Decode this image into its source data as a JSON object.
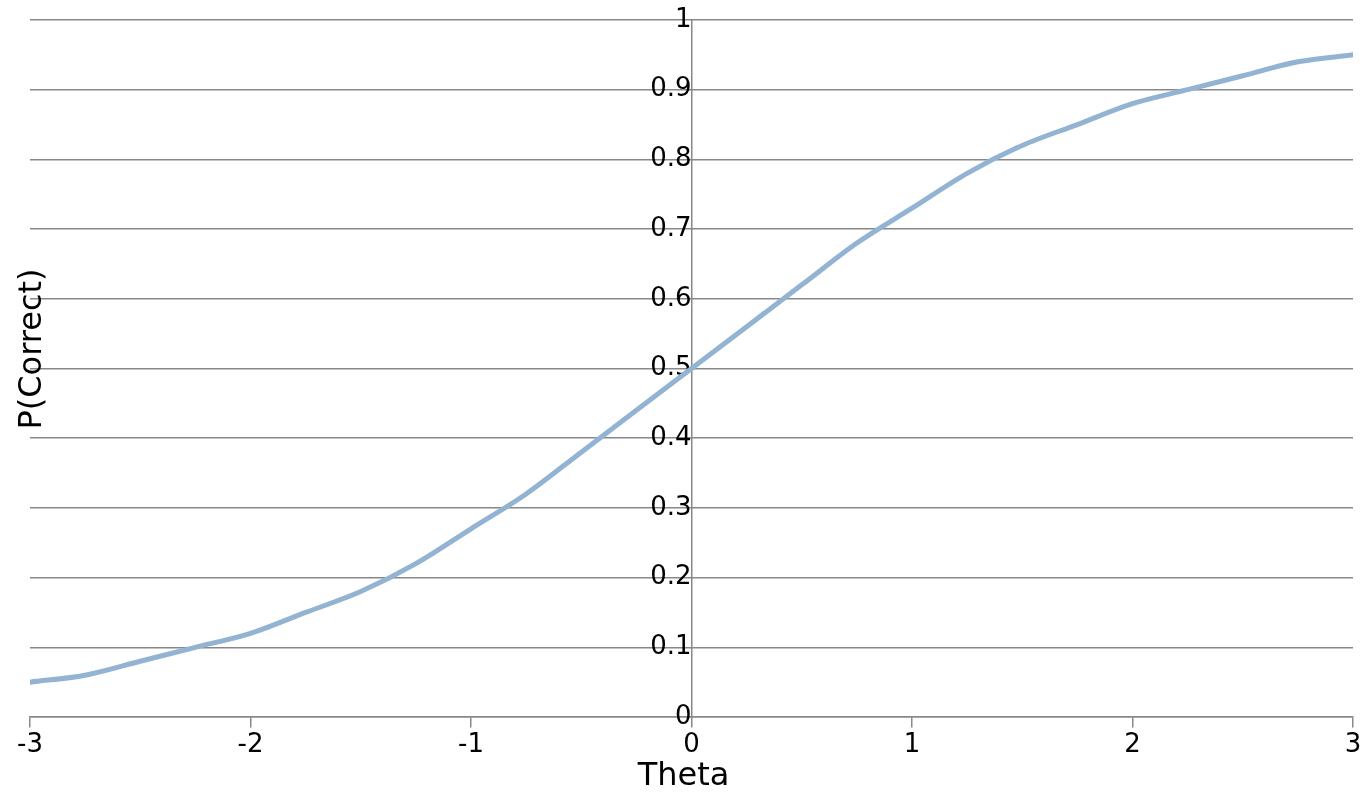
{
  "chart_data": {
    "type": "line",
    "xlabel": "Theta",
    "ylabel": "P(Correct)",
    "series": [
      {
        "color": "#93b3d3",
        "x": [
          -3,
          -2.75,
          -2.5,
          -2.25,
          -2,
          -1.75,
          -1.5,
          -1.25,
          -1,
          -0.75,
          -0.5,
          -0.25,
          0,
          0.25,
          0.5,
          0.75,
          1,
          1.25,
          1.5,
          1.75,
          2,
          2.25,
          2.5,
          2.75,
          3
        ],
        "values": [
          0.05,
          0.06,
          0.08,
          0.1,
          0.12,
          0.15,
          0.18,
          0.22,
          0.27,
          0.32,
          0.38,
          0.44,
          0.5,
          0.56,
          0.62,
          0.68,
          0.73,
          0.78,
          0.82,
          0.85,
          0.88,
          0.9,
          0.92,
          0.94,
          0.95
        ]
      }
    ],
    "xlim": [
      -3,
      3
    ],
    "xticks": [
      -3,
      -2,
      -1,
      0,
      1,
      2,
      3
    ],
    "ylim": [
      0,
      1
    ],
    "yticks": [
      0,
      0.1,
      0.2,
      0.3,
      0.4,
      0.5,
      0.6,
      0.7,
      0.8,
      0.9,
      1
    ],
    "grid": "y",
    "marker": "none",
    "line_style": "solid"
  }
}
